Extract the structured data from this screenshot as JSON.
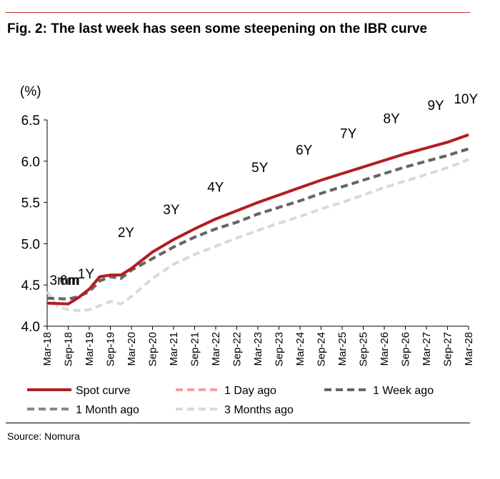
{
  "title": "Fig. 2: The last week has seen some steepening on the IBR curve",
  "source": "Source: Nomura",
  "chart_data": {
    "type": "line",
    "title": "Fig. 2: The last week has seen some steepening on the IBR curve",
    "ylabel": "(%)",
    "xlabel": "",
    "ylim": [
      4.0,
      6.5
    ],
    "yticks": [
      "4.0",
      "4.5",
      "5.0",
      "5.5",
      "6.0",
      "6.5"
    ],
    "xticks": [
      "Mar-18",
      "Sep-18",
      "Mar-19",
      "Sep-19",
      "Mar-20",
      "Sep-20",
      "Mar-21",
      "Sep-21",
      "Mar-22",
      "Sep-22",
      "Mar-23",
      "Sep-23",
      "Mar-24",
      "Sep-24",
      "Mar-25",
      "Sep-25",
      "Mar-26",
      "Sep-26",
      "Mar-27",
      "Sep-27",
      "Mar-28"
    ],
    "grid": false,
    "legend": "bottom",
    "annotations": [
      {
        "text": "3mm",
        "x": 0.12,
        "y": 4.5
      },
      {
        "text": "6m",
        "x": 0.6,
        "y": 4.5
      },
      {
        "text": "1Y",
        "x": 1.45,
        "y": 4.58
      },
      {
        "text": "2Y",
        "x": 3.35,
        "y": 5.08
      },
      {
        "text": "3Y",
        "x": 5.5,
        "y": 5.36
      },
      {
        "text": "4Y",
        "x": 7.6,
        "y": 5.63
      },
      {
        "text": "5Y",
        "x": 9.7,
        "y": 5.87
      },
      {
        "text": "6Y",
        "x": 11.8,
        "y": 6.08
      },
      {
        "text": "7Y",
        "x": 13.9,
        "y": 6.28
      },
      {
        "text": "8Y",
        "x": 15.95,
        "y": 6.46
      },
      {
        "text": "9Y",
        "x": 18.05,
        "y": 6.62
      },
      {
        "text": "10Y",
        "x": 19.3,
        "y": 6.7
      }
    ],
    "series": [
      {
        "name": "Spot curve",
        "color": "#b01e24",
        "dash": "solid",
        "points": [
          [
            0,
            4.28
          ],
          [
            1,
            4.27
          ],
          [
            1.5,
            4.35
          ],
          [
            2,
            4.45
          ],
          [
            2.5,
            4.6
          ],
          [
            3,
            4.62
          ],
          [
            3.5,
            4.62
          ],
          [
            4,
            4.7
          ],
          [
            5,
            4.9
          ],
          [
            6,
            5.05
          ],
          [
            7,
            5.18
          ],
          [
            8,
            5.3
          ],
          [
            9,
            5.4
          ],
          [
            10,
            5.5
          ],
          [
            11,
            5.59
          ],
          [
            12,
            5.68
          ],
          [
            13,
            5.77
          ],
          [
            14,
            5.85
          ],
          [
            15,
            5.93
          ],
          [
            16,
            6.01
          ],
          [
            17,
            6.09
          ],
          [
            18,
            6.16
          ],
          [
            19,
            6.23
          ],
          [
            20,
            6.32
          ]
        ]
      },
      {
        "name": "1 Day ago",
        "color": "#f2a0a0",
        "dash": "dashed",
        "points": [
          [
            0,
            4.28
          ],
          [
            1,
            4.27
          ],
          [
            1.5,
            4.35
          ],
          [
            2,
            4.45
          ],
          [
            2.5,
            4.6
          ],
          [
            3,
            4.62
          ],
          [
            3.5,
            4.62
          ],
          [
            4,
            4.7
          ],
          [
            5,
            4.9
          ],
          [
            6,
            5.05
          ],
          [
            7,
            5.18
          ],
          [
            8,
            5.3
          ],
          [
            9,
            5.4
          ],
          [
            10,
            5.5
          ],
          [
            11,
            5.59
          ],
          [
            12,
            5.68
          ],
          [
            13,
            5.77
          ],
          [
            14,
            5.85
          ],
          [
            15,
            5.93
          ],
          [
            16,
            6.01
          ],
          [
            17,
            6.09
          ],
          [
            18,
            6.16
          ],
          [
            19,
            6.23
          ],
          [
            20,
            6.32
          ]
        ]
      },
      {
        "name": "1 Week ago",
        "color": "#666666",
        "dash": "dashed",
        "points": [
          [
            0,
            4.34
          ],
          [
            1,
            4.33
          ],
          [
            1.5,
            4.36
          ],
          [
            2,
            4.42
          ],
          [
            2.5,
            4.55
          ],
          [
            3,
            4.6
          ],
          [
            3.5,
            4.58
          ],
          [
            4,
            4.68
          ],
          [
            5,
            4.82
          ],
          [
            6,
            4.96
          ],
          [
            7,
            5.08
          ],
          [
            8,
            5.18
          ],
          [
            9,
            5.26
          ],
          [
            10,
            5.36
          ],
          [
            11,
            5.44
          ],
          [
            12,
            5.52
          ],
          [
            13,
            5.61
          ],
          [
            14,
            5.69
          ],
          [
            15,
            5.77
          ],
          [
            16,
            5.85
          ],
          [
            17,
            5.93
          ],
          [
            18,
            6.0
          ],
          [
            19,
            6.07
          ],
          [
            20,
            6.15
          ]
        ]
      },
      {
        "name": "1 Month ago",
        "color": "#888888",
        "dash": "dashed",
        "points": [
          [
            0,
            4.34
          ],
          [
            1,
            4.33
          ],
          [
            1.5,
            4.36
          ],
          [
            2,
            4.42
          ],
          [
            2.5,
            4.55
          ],
          [
            3,
            4.6
          ],
          [
            3.5,
            4.58
          ],
          [
            4,
            4.68
          ],
          [
            5,
            4.82
          ],
          [
            6,
            4.96
          ],
          [
            7,
            5.08
          ],
          [
            8,
            5.18
          ],
          [
            9,
            5.26
          ],
          [
            10,
            5.36
          ],
          [
            11,
            5.44
          ],
          [
            12,
            5.52
          ],
          [
            13,
            5.61
          ],
          [
            14,
            5.69
          ],
          [
            15,
            5.77
          ],
          [
            16,
            5.85
          ],
          [
            17,
            5.93
          ],
          [
            18,
            6.0
          ],
          [
            19,
            6.07
          ],
          [
            20,
            6.15
          ]
        ]
      },
      {
        "name": "3 Months ago",
        "color": "#d9d9d9",
        "dash": "dashed",
        "points": [
          [
            0,
            4.42
          ],
          [
            0.5,
            4.24
          ],
          [
            1,
            4.2
          ],
          [
            1.5,
            4.19
          ],
          [
            2,
            4.2
          ],
          [
            2.5,
            4.25
          ],
          [
            3,
            4.3
          ],
          [
            3.5,
            4.27
          ],
          [
            4,
            4.36
          ],
          [
            5,
            4.58
          ],
          [
            6,
            4.75
          ],
          [
            7,
            4.87
          ],
          [
            8,
            4.97
          ],
          [
            9,
            5.07
          ],
          [
            10,
            5.16
          ],
          [
            11,
            5.25
          ],
          [
            12,
            5.33
          ],
          [
            13,
            5.42
          ],
          [
            14,
            5.5
          ],
          [
            15,
            5.59
          ],
          [
            16,
            5.68
          ],
          [
            17,
            5.76
          ],
          [
            18,
            5.84
          ],
          [
            19,
            5.92
          ],
          [
            20,
            6.02
          ]
        ]
      }
    ]
  }
}
